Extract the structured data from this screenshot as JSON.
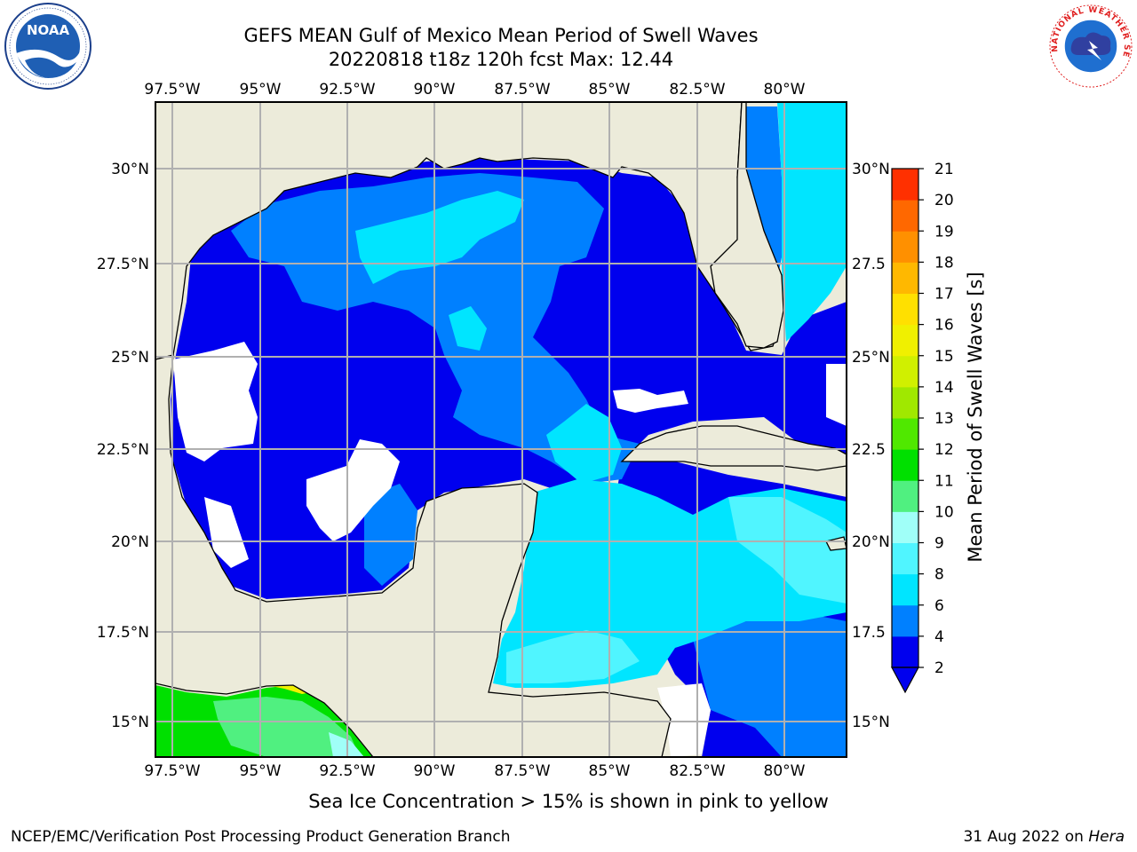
{
  "header": {
    "title_line1": "GEFS MEAN Gulf of Mexico Mean Period of Swell Waves",
    "title_line2": "20220818 t18z 120h fcst   Max: 12.44"
  },
  "logos": {
    "left": {
      "name": "NOAA",
      "ring_text": "NATIONAL OCEANIC AND ATMOSPHERIC ADMINISTRATION · U.S. DEPARTMENT OF COMMERCE"
    },
    "right": {
      "name": "NATIONAL WEATHER SERVICE"
    }
  },
  "map": {
    "lon_labels": [
      "97.5°W",
      "95°W",
      "92.5°W",
      "90°W",
      "87.5°W",
      "85°W",
      "82.5°W",
      "80°W"
    ],
    "lat_labels_left": [
      "30°N",
      "27.5°N",
      "25°N",
      "22.5°N",
      "20°N",
      "17.5°N",
      "15°N"
    ],
    "lat_labels_right": [
      "30°N",
      "27.5",
      "25°N",
      "22.5",
      "20°N",
      "17.5",
      "15°N"
    ],
    "colors": {
      "land": "#ecebda",
      "grid": "#b0b0b0",
      "coast": "#000000"
    }
  },
  "colorbar": {
    "label": "Mean Period of Swell Waves [s]",
    "ticks": [
      "2",
      "4",
      "6",
      "8",
      "9",
      "10",
      "11",
      "12",
      "13",
      "14",
      "15",
      "16",
      "17",
      "18",
      "19",
      "20",
      "21"
    ],
    "colors": [
      "#0000ee",
      "#0080ff",
      "#00e5ff",
      "#50f5ff",
      "#a0fff8",
      "#50f080",
      "#00e000",
      "#50e800",
      "#a0e800",
      "#d0f000",
      "#f0f000",
      "#ffe000",
      "#ffb800",
      "#ff9000",
      "#ff6800",
      "#ff3000",
      "#ff0000"
    ],
    "extend_color": "#0000ee"
  },
  "footer": {
    "note": "Sea Ice Concentration > 15% is shown in pink to yellow",
    "credit": "NCEP/EMC/Verification Post Processing Product Generation Branch",
    "date": "31 Aug 2022 on",
    "machine": "Hera"
  }
}
